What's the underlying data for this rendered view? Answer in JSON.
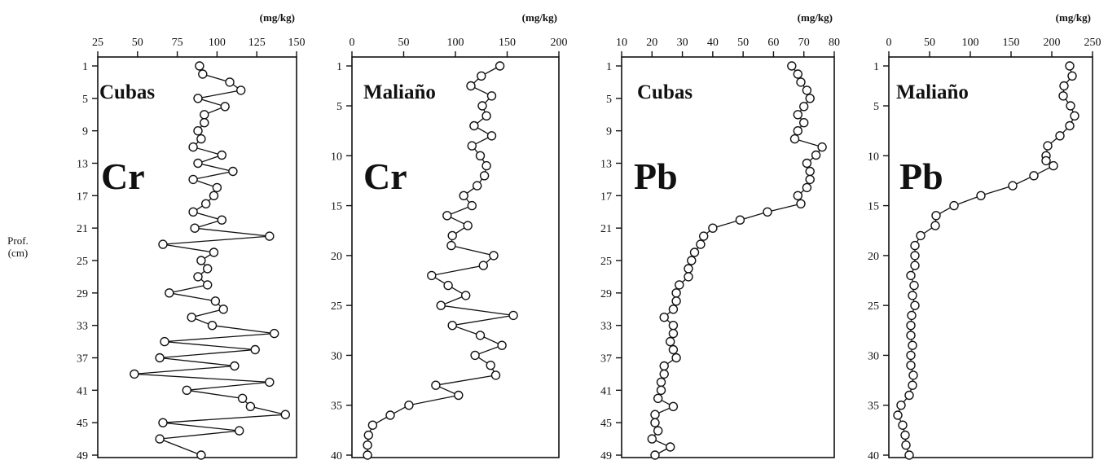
{
  "y_axis_label": [
    "Prof.",
    "(cm)"
  ],
  "chart_data": [
    {
      "type": "line",
      "site": "Cubas",
      "element": "Cr",
      "unit": "(mg/kg)",
      "xlim": [
        25,
        150
      ],
      "xticks": [
        25,
        50,
        75,
        100,
        125,
        150
      ],
      "ylim": [
        0,
        50
      ],
      "yticks": [
        1,
        5,
        9,
        13,
        17,
        21,
        25,
        29,
        33,
        37,
        41,
        45,
        49
      ],
      "x": [
        89,
        91,
        108,
        115,
        88,
        105,
        92,
        92,
        88,
        90,
        85,
        103,
        88,
        110,
        85,
        100,
        98,
        93,
        85,
        103,
        86,
        133,
        66,
        98,
        90,
        94,
        88,
        94,
        70,
        99,
        104,
        84,
        97,
        136,
        67,
        124,
        64,
        111,
        48,
        133,
        81,
        116,
        121,
        143,
        66,
        114,
        64,
        90
      ],
      "y": [
        1,
        2,
        3,
        4,
        5,
        6,
        7,
        8,
        9,
        10,
        11,
        12,
        13,
        14,
        15,
        16,
        17,
        18,
        19,
        20,
        21,
        22,
        23,
        24,
        25,
        26,
        27,
        28,
        29,
        30,
        31,
        32,
        33,
        34,
        35,
        36,
        37,
        38,
        39,
        40,
        41,
        42,
        43,
        44,
        45,
        46,
        47,
        49
      ]
    },
    {
      "type": "line",
      "site": "Maliaño",
      "element": "Cr",
      "unit": "(mg/kg)",
      "xlim": [
        0,
        200
      ],
      "xticks": [
        0,
        50,
        100,
        150,
        200
      ],
      "ylim": [
        0,
        40
      ],
      "yticks": [
        1,
        5,
        10,
        15,
        20,
        25,
        30,
        35,
        40
      ],
      "x": [
        143,
        125,
        115,
        135,
        126,
        130,
        118,
        135,
        116,
        124,
        130,
        128,
        121,
        108,
        116,
        92,
        112,
        97,
        96,
        137,
        127,
        77,
        93,
        110,
        86,
        156,
        97,
        124,
        145,
        119,
        134,
        139,
        81,
        103,
        55,
        37,
        20,
        16,
        15,
        15
      ],
      "y": [
        1,
        2,
        3,
        4,
        5,
        6,
        7,
        8,
        9,
        10,
        11,
        12,
        13,
        14,
        15,
        16,
        17,
        18,
        19,
        20,
        21,
        22,
        23,
        24,
        25,
        26,
        27,
        28,
        29,
        30,
        31,
        32,
        33,
        34,
        35,
        36,
        37,
        38,
        39,
        40
      ]
    },
    {
      "type": "line",
      "site": "Cubas",
      "element": "Pb",
      "unit": "(mg/kg)",
      "xlim": [
        10,
        80
      ],
      "xticks": [
        10,
        20,
        30,
        40,
        50,
        60,
        70,
        80
      ],
      "ylim": [
        0,
        50
      ],
      "yticks": [
        1,
        5,
        9,
        13,
        17,
        21,
        25,
        29,
        33,
        37,
        41,
        45,
        49
      ],
      "x": [
        66,
        68,
        69,
        71,
        72,
        70,
        68,
        70,
        68,
        67,
        76,
        74,
        71,
        72,
        72,
        71,
        68,
        69,
        58,
        49,
        40,
        37,
        36,
        34,
        33,
        32,
        32,
        29,
        28,
        28,
        27,
        24,
        27,
        27,
        26,
        27,
        28,
        24,
        24,
        23,
        23,
        22,
        27,
        21,
        21,
        22,
        20,
        26,
        21
      ],
      "y": [
        1,
        2,
        3,
        4,
        5,
        6,
        7,
        8,
        9,
        10,
        11,
        12,
        13,
        14,
        15,
        16,
        17,
        18,
        19,
        20,
        21,
        22,
        23,
        24,
        25,
        26,
        27,
        28,
        29,
        30,
        31,
        32,
        33,
        34,
        35,
        36,
        37,
        38,
        39,
        40,
        41,
        42,
        43,
        44,
        45,
        46,
        47,
        48,
        49
      ]
    },
    {
      "type": "line",
      "site": "Maliaño",
      "element": "Pb",
      "unit": "(mg/kg)",
      "xlim": [
        0,
        250
      ],
      "xticks": [
        0,
        50,
        100,
        150,
        200,
        250
      ],
      "ylim": [
        0,
        40
      ],
      "yticks": [
        1,
        5,
        10,
        15,
        20,
        25,
        30,
        35,
        40
      ],
      "x": [
        222,
        225,
        215,
        214,
        223,
        228,
        222,
        210,
        195,
        193,
        193,
        202,
        178,
        152,
        113,
        80,
        58,
        57,
        39,
        32,
        32,
        32,
        27,
        31,
        29,
        32,
        28,
        27,
        27,
        29,
        27,
        27,
        30,
        29,
        25,
        15,
        11,
        17,
        20,
        21,
        25
      ],
      "y": [
        1,
        2,
        3,
        4,
        5,
        6,
        7,
        8,
        9,
        10,
        10.5,
        11,
        12,
        13,
        14,
        15,
        16,
        17,
        18,
        19,
        20,
        21,
        22,
        23,
        24,
        25,
        26,
        27,
        28,
        29,
        30,
        31,
        32,
        33,
        34,
        35,
        36,
        37,
        38,
        39,
        40
      ]
    }
  ]
}
